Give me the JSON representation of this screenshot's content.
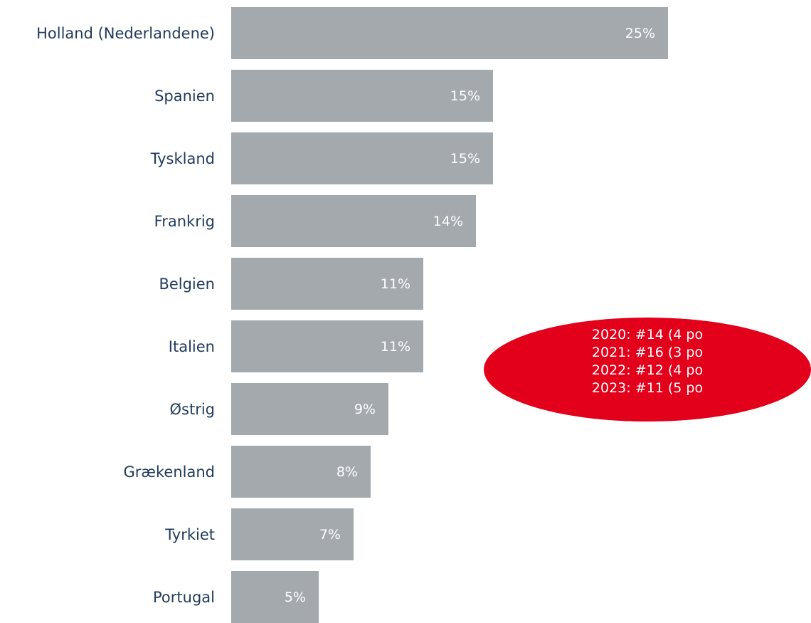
{
  "chart_data": {
    "type": "bar",
    "orientation": "horizontal",
    "title": "",
    "categories": [
      "Holland (Nederlandene)",
      "Spanien",
      "Tyskland",
      "Frankrig",
      "Belgien",
      "Italien",
      "Østrig",
      "Grækenland",
      "Tyrkiet",
      "Portugal"
    ],
    "values": [
      25,
      15,
      15,
      14,
      11,
      11,
      9,
      8,
      7,
      5
    ],
    "value_labels": [
      "25%",
      "15%",
      "15%",
      "14%",
      "11%",
      "11%",
      "9%",
      "8%",
      "7%",
      "5%"
    ],
    "unit": "%",
    "xlim": [
      0,
      25
    ],
    "grid": false,
    "legend": "none",
    "colors": {
      "bar": "#a3a9ad",
      "category_text": "#1f3a5a",
      "value_text": "#ffffff",
      "callout": "#e2001a"
    },
    "annotation": {
      "lines": [
        "2020: #14 (4 po",
        "2021: #16 (3 po",
        "2022: #12 (4 po",
        "2023: #11 (5 po"
      ]
    }
  }
}
